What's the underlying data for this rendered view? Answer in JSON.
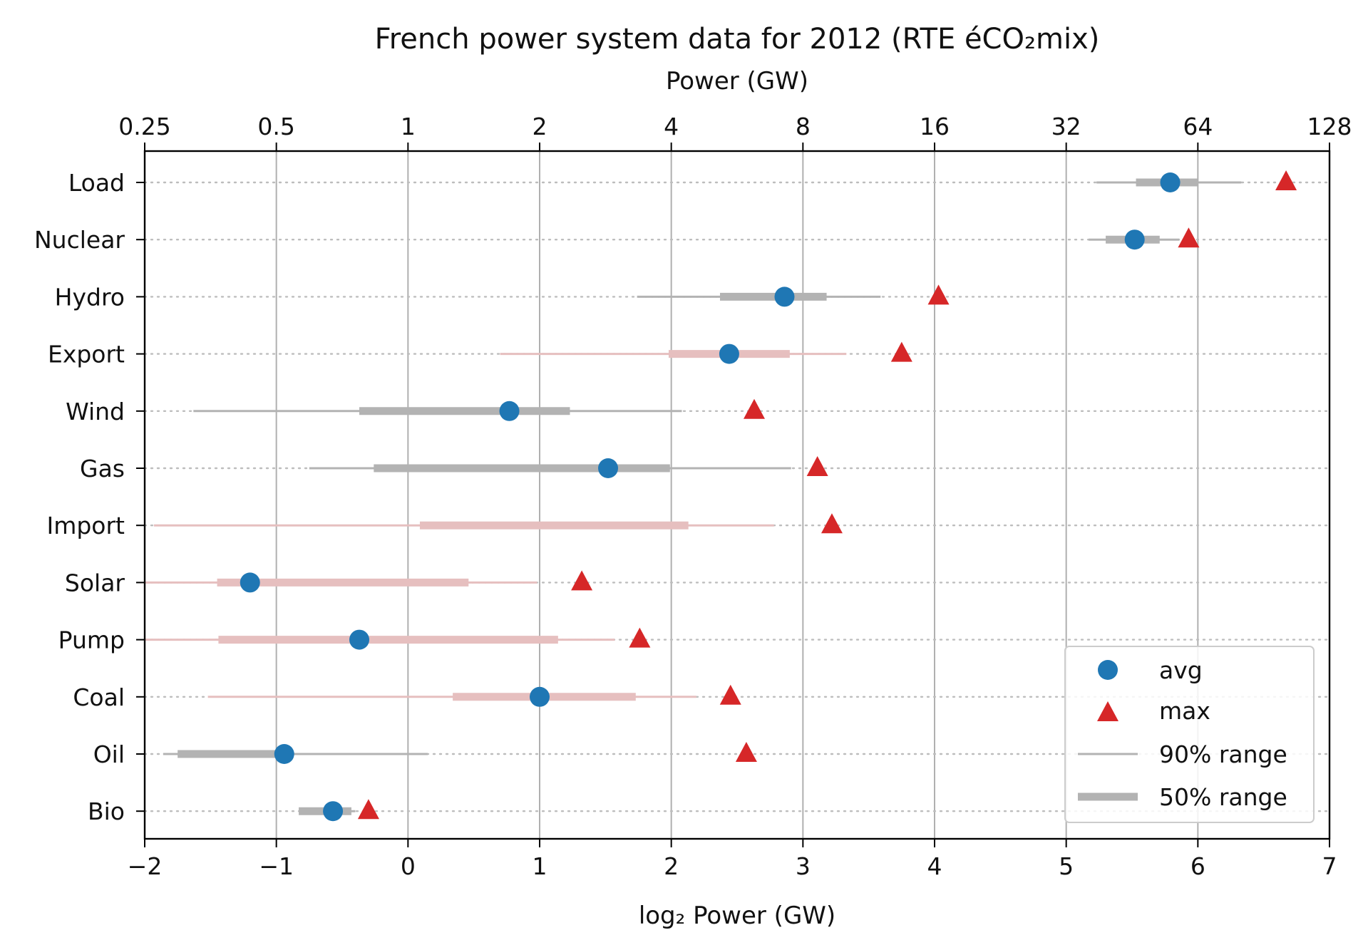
{
  "chart_data": {
    "type": "range-dot",
    "title": "French power system data for 2012 (RTE éCO₂mix)",
    "xlabel": "log₂ Power (GW)",
    "x2label": "Power (GW)",
    "xlim": [
      -2,
      7
    ],
    "xticks": [
      -2,
      -1,
      0,
      1,
      2,
      3,
      4,
      5,
      6,
      7
    ],
    "xtick_labels": [
      "−2",
      "−1",
      "0",
      "1",
      "2",
      "3",
      "4",
      "5",
      "6",
      "7"
    ],
    "x2tick_labels": [
      "0.25",
      "0.5",
      "1",
      "2",
      "4",
      "8",
      "16",
      "32",
      "64",
      "128"
    ],
    "grid_x": true,
    "legend_position": "lower-right",
    "legend": {
      "avg": "avg",
      "max": "max",
      "range90": "90% range",
      "range50": "50% range"
    },
    "colors": {
      "avg": "#1f77b4",
      "max": "#d62728",
      "range_gray": "#b3b3b3",
      "range_pink": "#e6bfbf",
      "grid": "#b0b0b0"
    },
    "categories": [
      "Load",
      "Nuclear",
      "Hydro",
      "Export",
      "Wind",
      "Gas",
      "Import",
      "Solar",
      "Pump",
      "Coal",
      "Oil",
      "Bio"
    ],
    "rows": [
      {
        "label": "Load",
        "color": "gray",
        "p5": 5.23,
        "p25": 5.53,
        "p75": 6.0,
        "p95": 6.33,
        "avg": 5.79,
        "max": 6.67
      },
      {
        "label": "Nuclear",
        "color": "gray",
        "p5": 5.17,
        "p25": 5.3,
        "p75": 5.71,
        "p95": 5.86,
        "avg": 5.52,
        "max": 5.93
      },
      {
        "label": "Hydro",
        "color": "gray",
        "p5": 1.74,
        "p25": 2.37,
        "p75": 3.18,
        "p95": 3.59,
        "avg": 2.86,
        "max": 4.03
      },
      {
        "label": "Export",
        "color": "pink",
        "p5": 0.7,
        "p25": 1.98,
        "p75": 2.9,
        "p95": 3.33,
        "avg": 2.44,
        "max": 3.75
      },
      {
        "label": "Wind",
        "color": "gray",
        "p5": -1.63,
        "p25": -0.37,
        "p75": 1.23,
        "p95": 2.08,
        "avg": 0.77,
        "max": 2.63
      },
      {
        "label": "Gas",
        "color": "gray",
        "p5": -0.75,
        "p25": -0.26,
        "p75": 1.99,
        "p95": 2.91,
        "avg": 1.52,
        "max": 3.11
      },
      {
        "label": "Import",
        "color": "pink",
        "p5": -1.93,
        "p25": 0.09,
        "p75": 2.13,
        "p95": 2.78,
        "avg": null,
        "max": 3.22
      },
      {
        "label": "Solar",
        "color": "pink",
        "p5": -2.0,
        "p25": -1.45,
        "p75": 0.46,
        "p95": 0.98,
        "avg": -1.2,
        "max": 1.32
      },
      {
        "label": "Pump",
        "color": "pink",
        "p5": -2.0,
        "p25": -1.44,
        "p75": 1.14,
        "p95": 1.57,
        "avg": -0.37,
        "max": 1.76
      },
      {
        "label": "Coal",
        "color": "pink",
        "p5": -1.52,
        "p25": 0.34,
        "p75": 1.73,
        "p95": 2.19,
        "avg": 1.0,
        "max": 2.45
      },
      {
        "label": "Oil",
        "color": "gray",
        "p5": -1.86,
        "p25": -1.75,
        "p75": -0.95,
        "p95": 0.15,
        "avg": -0.94,
        "max": 2.57
      },
      {
        "label": "Bio",
        "color": "gray",
        "p5": -0.83,
        "p25": -0.83,
        "p75": -0.43,
        "p95": -0.4,
        "avg": -0.57,
        "max": -0.3
      }
    ]
  }
}
